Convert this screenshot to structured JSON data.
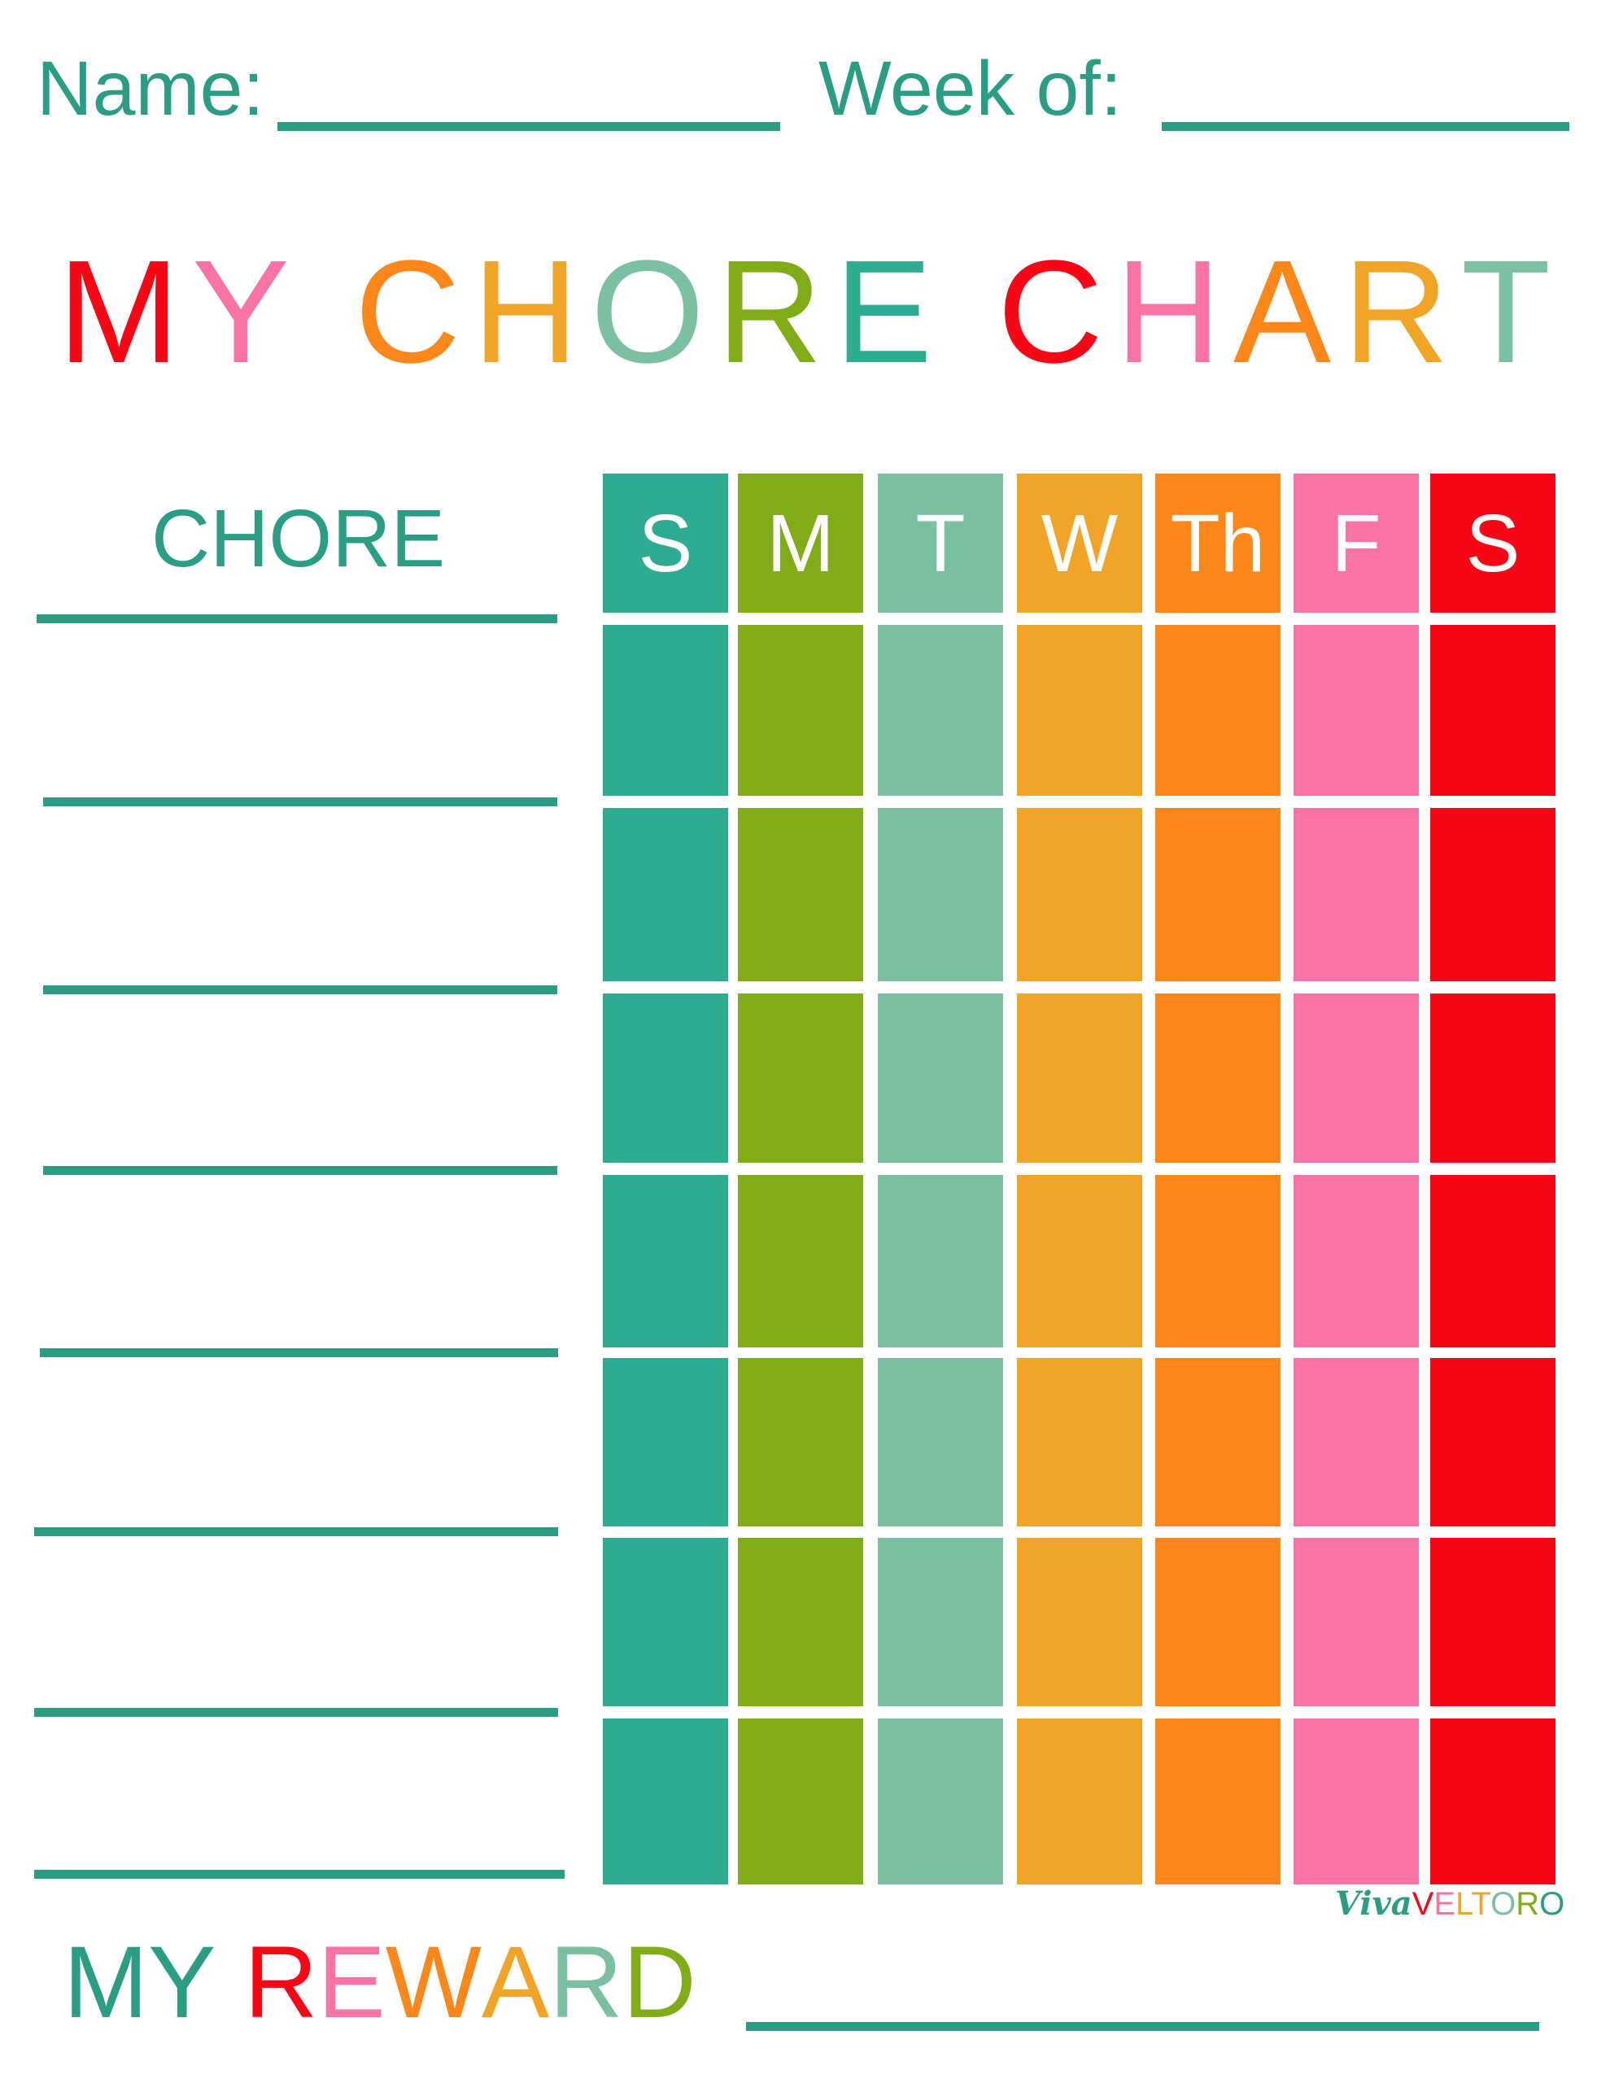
{
  "header": {
    "name_label": "Name:",
    "week_label": "Week of:"
  },
  "title": {
    "letters": [
      {
        "ch": "M",
        "color": "#f70616"
      },
      {
        "ch": "Y",
        "color": "#f973a6"
      },
      {
        "ch": " ",
        "color": "#fff"
      },
      {
        "ch": "C",
        "color": "#fb871b"
      },
      {
        "ch": "H",
        "color": "#f0a528"
      },
      {
        "ch": "O",
        "color": "#7bc0a0"
      },
      {
        "ch": "R",
        "color": "#80ad17"
      },
      {
        "ch": "E",
        "color": "#2eac91"
      },
      {
        "ch": " ",
        "color": "#fff"
      },
      {
        "ch": "C",
        "color": "#f70616"
      },
      {
        "ch": "H",
        "color": "#f973a6"
      },
      {
        "ch": "A",
        "color": "#fb871b"
      },
      {
        "ch": "R",
        "color": "#f0a528"
      },
      {
        "ch": "T",
        "color": "#7bc0a0"
      }
    ]
  },
  "chart": {
    "chore_header": "CHORE",
    "days": [
      {
        "label": "S",
        "color": "#2eac91"
      },
      {
        "label": "M",
        "color": "#80ad17"
      },
      {
        "label": "T",
        "color": "#7bc0a0"
      },
      {
        "label": "W",
        "color": "#f0a528"
      },
      {
        "label": "Th",
        "color": "#fb871b"
      },
      {
        "label": "F",
        "color": "#f973a6"
      },
      {
        "label": "S",
        "color": "#f70616"
      }
    ],
    "row_count": 7
  },
  "reward": {
    "letters": [
      {
        "ch": "M",
        "color": "#2a9d84"
      },
      {
        "ch": "Y",
        "color": "#2a9d84"
      },
      {
        "ch": " ",
        "color": "#fff"
      },
      {
        "ch": "R",
        "color": "#f70616"
      },
      {
        "ch": "E",
        "color": "#f973a6"
      },
      {
        "ch": "W",
        "color": "#fb871b"
      },
      {
        "ch": "A",
        "color": "#f0a528"
      },
      {
        "ch": "R",
        "color": "#7bc0a0"
      },
      {
        "ch": "D",
        "color": "#80ad17"
      }
    ]
  },
  "logo": {
    "text": "VivaVELTORO"
  }
}
